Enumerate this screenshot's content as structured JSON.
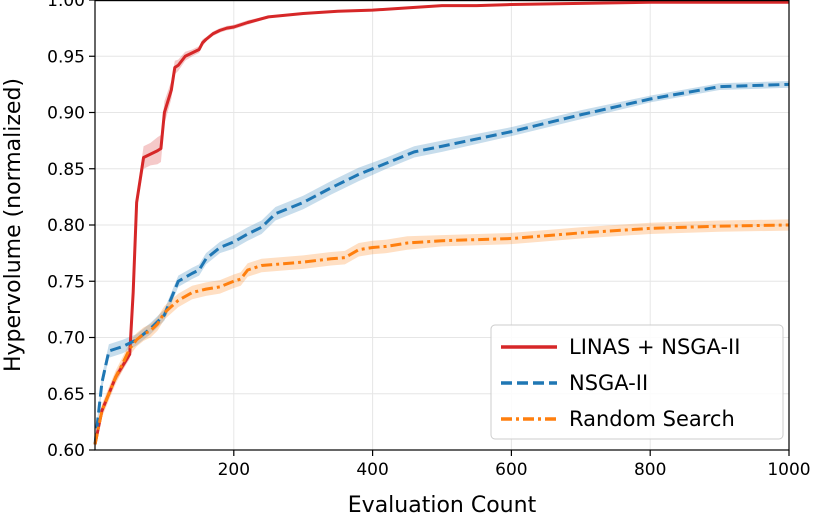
{
  "chart_data": {
    "type": "line",
    "xlabel": "Evaluation Count",
    "ylabel": "Hypervolume (normalized)",
    "xlim": [
      0,
      1000
    ],
    "ylim": [
      0.6,
      1.0
    ],
    "xticks": [
      200,
      400,
      600,
      800,
      1000
    ],
    "xtick_labels": [
      "200",
      "400",
      "600",
      "800",
      "1000"
    ],
    "yticks": [
      0.6,
      0.65,
      0.7,
      0.75,
      0.8,
      0.85,
      0.9,
      0.95,
      1.0
    ],
    "ytick_labels": [
      "0.60",
      "0.65",
      "0.70",
      "0.75",
      "0.80",
      "0.85",
      "0.90",
      "0.95",
      "1.00"
    ],
    "grid": true,
    "legend_position": "lower-right",
    "series": [
      {
        "name": "LINAS + NSGA-II",
        "color": "#d62728",
        "style": "solid",
        "x": [
          0,
          10,
          20,
          30,
          40,
          50,
          55,
          60,
          65,
          70,
          80,
          90,
          95,
          100,
          110,
          115,
          120,
          130,
          140,
          150,
          155,
          160,
          170,
          180,
          190,
          200,
          220,
          250,
          300,
          350,
          400,
          450,
          500,
          550,
          600,
          700,
          800,
          900,
          1000
        ],
        "y": [
          0.605,
          0.635,
          0.65,
          0.665,
          0.675,
          0.685,
          0.74,
          0.82,
          0.84,
          0.86,
          0.863,
          0.866,
          0.868,
          0.9,
          0.92,
          0.94,
          0.942,
          0.95,
          0.953,
          0.956,
          0.962,
          0.965,
          0.97,
          0.973,
          0.975,
          0.976,
          0.98,
          0.985,
          0.988,
          0.99,
          0.991,
          0.993,
          0.995,
          0.995,
          0.996,
          0.997,
          0.998,
          0.998,
          0.998
        ],
        "band": [
          0.004,
          0.004,
          0.004,
          0.004,
          0.004,
          0.004,
          0.004,
          0.006,
          0.008,
          0.01,
          0.01,
          0.012,
          0.012,
          0.01,
          0.008,
          0.006,
          0.005,
          0.004,
          0.003,
          0.003,
          0.003,
          0.002,
          0.002,
          0.002,
          0.002,
          0.002,
          0.002,
          0.001,
          0.001,
          0.001,
          0.001,
          0.001,
          0.001,
          0.001,
          0.001,
          0.001,
          0.001,
          0.001,
          0.001
        ]
      },
      {
        "name": "NSGA-II",
        "color": "#1f77b4",
        "style": "dashed",
        "x": [
          0,
          10,
          20,
          30,
          40,
          60,
          80,
          100,
          110,
          120,
          140,
          150,
          160,
          180,
          200,
          220,
          240,
          260,
          280,
          300,
          340,
          380,
          420,
          460,
          500,
          600,
          700,
          800,
          900,
          1000
        ],
        "y": [
          0.605,
          0.66,
          0.688,
          0.69,
          0.692,
          0.698,
          0.708,
          0.72,
          0.735,
          0.75,
          0.757,
          0.76,
          0.77,
          0.78,
          0.785,
          0.792,
          0.798,
          0.81,
          0.815,
          0.82,
          0.833,
          0.845,
          0.855,
          0.865,
          0.87,
          0.883,
          0.898,
          0.912,
          0.923,
          0.925
        ],
        "band": [
          0.004,
          0.006,
          0.006,
          0.006,
          0.006,
          0.005,
          0.005,
          0.005,
          0.005,
          0.005,
          0.005,
          0.005,
          0.005,
          0.005,
          0.006,
          0.006,
          0.006,
          0.006,
          0.006,
          0.006,
          0.006,
          0.006,
          0.005,
          0.005,
          0.005,
          0.004,
          0.004,
          0.003,
          0.003,
          0.003
        ]
      },
      {
        "name": "Random Search",
        "color": "#ff7f0e",
        "style": "dashdot",
        "x": [
          0,
          10,
          20,
          30,
          40,
          50,
          60,
          70,
          80,
          90,
          100,
          120,
          140,
          160,
          180,
          200,
          210,
          220,
          240,
          260,
          300,
          340,
          360,
          380,
          400,
          420,
          450,
          500,
          600,
          700,
          800,
          900,
          1000
        ],
        "y": [
          0.605,
          0.635,
          0.65,
          0.665,
          0.677,
          0.69,
          0.698,
          0.703,
          0.706,
          0.712,
          0.722,
          0.733,
          0.74,
          0.743,
          0.745,
          0.75,
          0.752,
          0.76,
          0.764,
          0.765,
          0.767,
          0.77,
          0.771,
          0.778,
          0.78,
          0.781,
          0.784,
          0.786,
          0.788,
          0.793,
          0.797,
          0.799,
          0.8
        ],
        "band": [
          0.004,
          0.006,
          0.006,
          0.006,
          0.006,
          0.006,
          0.006,
          0.006,
          0.006,
          0.006,
          0.006,
          0.006,
          0.006,
          0.006,
          0.006,
          0.006,
          0.006,
          0.006,
          0.006,
          0.006,
          0.006,
          0.006,
          0.006,
          0.006,
          0.006,
          0.006,
          0.006,
          0.005,
          0.005,
          0.005,
          0.005,
          0.005,
          0.005
        ]
      }
    ]
  }
}
